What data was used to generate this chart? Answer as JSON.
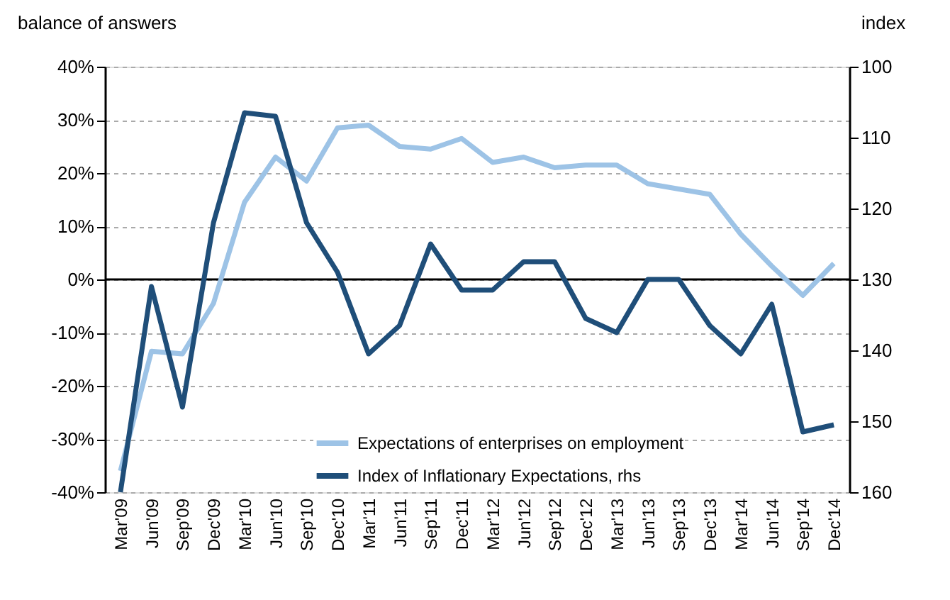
{
  "chart_data": {
    "type": "line",
    "ylabel": "balance of answers",
    "y2label": "index",
    "categories": [
      "Mar'09",
      "Jun'09",
      "Sep'09",
      "Dec'09",
      "Mar'10",
      "Jun'10",
      "Sep'10",
      "Dec'10",
      "Mar'11",
      "Jun'11",
      "Sep'11",
      "Dec'11",
      "Mar'12",
      "Jun'12",
      "Sep'12",
      "Dec'12",
      "Mar'13",
      "Jun'13",
      "Sep'13",
      "Dec'13",
      "Mar'14",
      "Jun'14",
      "Sep'14",
      "Dec'14"
    ],
    "series": [
      {
        "name": "Expectations of enterprises on employment",
        "color": "#9dc3e6",
        "values": [
          -36,
          -13.5,
          -14,
          -4.5,
          14.5,
          23,
          18.5,
          28.5,
          29,
          25,
          24.5,
          26.5,
          22,
          23,
          21,
          21.5,
          21.5,
          18,
          17,
          16,
          8.5,
          2.5,
          -3,
          3
        ]
      },
      {
        "name": "Index of Inflationary Expectations, rhs",
        "color": "#1f4e79",
        "axis": "y2",
        "values": [
          160,
          131,
          148,
          122,
          106.5,
          107,
          122,
          129,
          140.5,
          136.5,
          125,
          131.5,
          131.5,
          127.5,
          127.5,
          135.5,
          137.5,
          130,
          130,
          136.5,
          140.5,
          133.5,
          151.5,
          150.5
        ]
      }
    ],
    "ylim": [
      -40,
      40
    ],
    "yticks": [
      {
        "value": -40,
        "label": "-40%"
      },
      {
        "value": -30,
        "label": "-30%"
      },
      {
        "value": -20,
        "label": "-20%"
      },
      {
        "value": -10,
        "label": "-10%"
      },
      {
        "value": 0,
        "label": "0%"
      },
      {
        "value": 10,
        "label": "10%"
      },
      {
        "value": 20,
        "label": "20%"
      },
      {
        "value": 30,
        "label": "30%"
      },
      {
        "value": 40,
        "label": "40%"
      }
    ],
    "y2lim": [
      160,
      100
    ],
    "y2ticks": [
      100,
      110,
      120,
      130,
      140,
      150,
      160
    ],
    "ref_lines": [
      {
        "axis": "y",
        "value": 0,
        "color": "#000000"
      }
    ],
    "grid": "y",
    "legend": "bottom",
    "line_style": "solid",
    "marker": "none"
  }
}
